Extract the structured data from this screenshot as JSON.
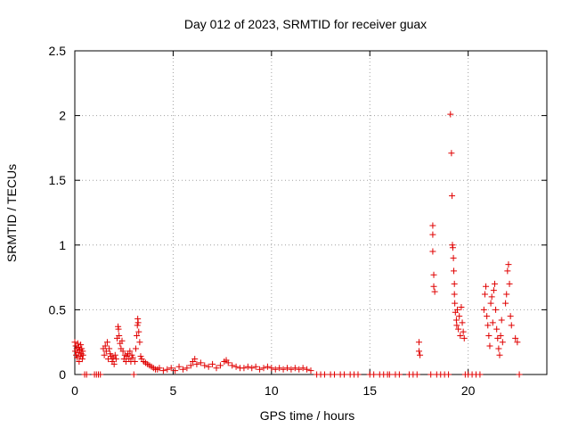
{
  "chart_data": {
    "type": "scatter",
    "title": "Day 012 of 2023, SRMTID for receiver guax",
    "xlabel": "GPS time / hours",
    "ylabel": "SRMTID / TECUs",
    "xlim": [
      0,
      24
    ],
    "ylim": [
      0,
      2.5
    ],
    "xticks": [
      0,
      5,
      10,
      15,
      20
    ],
    "yticks": [
      0,
      0.5,
      1,
      1.5,
      2,
      2.5
    ],
    "xtick_labels": [
      "0",
      "5",
      "10",
      "15",
      "20"
    ],
    "ytick_labels": [
      "0",
      "0.5",
      "1",
      "1.5",
      "2",
      "2.5"
    ],
    "grid": true,
    "marker": "+",
    "series": [
      {
        "name": "SRMTID",
        "color": "#e00000",
        "points": [
          [
            0.0,
            0.25
          ],
          [
            0.02,
            0.18
          ],
          [
            0.05,
            0.22
          ],
          [
            0.07,
            0.15
          ],
          [
            0.1,
            0.2
          ],
          [
            0.12,
            0.13
          ],
          [
            0.15,
            0.24
          ],
          [
            0.18,
            0.17
          ],
          [
            0.2,
            0.21
          ],
          [
            0.22,
            0.1
          ],
          [
            0.25,
            0.19
          ],
          [
            0.28,
            0.14
          ],
          [
            0.3,
            0.23
          ],
          [
            0.33,
            0.16
          ],
          [
            0.35,
            0.2
          ],
          [
            0.38,
            0.12
          ],
          [
            0.4,
            0.18
          ],
          [
            0.42,
            0.15
          ],
          [
            0.5,
            0.0
          ],
          [
            0.6,
            0.0
          ],
          [
            1.0,
            0.0
          ],
          [
            1.1,
            0.0
          ],
          [
            1.2,
            0.0
          ],
          [
            1.3,
            0.0
          ],
          [
            1.45,
            0.2
          ],
          [
            1.5,
            0.15
          ],
          [
            1.55,
            0.22
          ],
          [
            1.6,
            0.18
          ],
          [
            1.65,
            0.25
          ],
          [
            1.7,
            0.12
          ],
          [
            1.75,
            0.2
          ],
          [
            1.8,
            0.16
          ],
          [
            1.85,
            0.14
          ],
          [
            1.9,
            0.1
          ],
          [
            1.95,
            0.13
          ],
          [
            2.0,
            0.08
          ],
          [
            2.05,
            0.15
          ],
          [
            2.1,
            0.12
          ],
          [
            2.15,
            0.28
          ],
          [
            2.2,
            0.37
          ],
          [
            2.22,
            0.35
          ],
          [
            2.25,
            0.3
          ],
          [
            2.3,
            0.24
          ],
          [
            2.35,
            0.2
          ],
          [
            2.4,
            0.26
          ],
          [
            2.45,
            0.18
          ],
          [
            2.5,
            0.12
          ],
          [
            2.55,
            0.15
          ],
          [
            2.6,
            0.1
          ],
          [
            2.65,
            0.14
          ],
          [
            2.7,
            0.16
          ],
          [
            2.75,
            0.12
          ],
          [
            2.8,
            0.18
          ],
          [
            2.85,
            0.1
          ],
          [
            2.9,
            0.15
          ],
          [
            2.95,
            0.13
          ],
          [
            3.0,
            0.0
          ],
          [
            3.05,
            0.1
          ],
          [
            3.1,
            0.2
          ],
          [
            3.15,
            0.3
          ],
          [
            3.18,
            0.38
          ],
          [
            3.2,
            0.43
          ],
          [
            3.22,
            0.4
          ],
          [
            3.25,
            0.33
          ],
          [
            3.3,
            0.25
          ],
          [
            3.35,
            0.14
          ],
          [
            3.4,
            0.12
          ],
          [
            3.5,
            0.1
          ],
          [
            3.6,
            0.09
          ],
          [
            3.7,
            0.08
          ],
          [
            3.8,
            0.07
          ],
          [
            3.9,
            0.06
          ],
          [
            4.0,
            0.05
          ],
          [
            4.1,
            0.04
          ],
          [
            4.2,
            0.04
          ],
          [
            4.3,
            0.05
          ],
          [
            4.5,
            0.03
          ],
          [
            4.7,
            0.04
          ],
          [
            4.9,
            0.05
          ],
          [
            5.1,
            0.03
          ],
          [
            5.3,
            0.06
          ],
          [
            5.5,
            0.04
          ],
          [
            5.7,
            0.05
          ],
          [
            5.9,
            0.07
          ],
          [
            6.0,
            0.1
          ],
          [
            6.1,
            0.12
          ],
          [
            6.2,
            0.08
          ],
          [
            6.4,
            0.09
          ],
          [
            6.6,
            0.07
          ],
          [
            6.8,
            0.06
          ],
          [
            7.0,
            0.08
          ],
          [
            7.2,
            0.05
          ],
          [
            7.4,
            0.07
          ],
          [
            7.6,
            0.1
          ],
          [
            7.7,
            0.11
          ],
          [
            7.8,
            0.09
          ],
          [
            8.0,
            0.07
          ],
          [
            8.2,
            0.06
          ],
          [
            8.4,
            0.05
          ],
          [
            8.6,
            0.05
          ],
          [
            8.8,
            0.06
          ],
          [
            9.0,
            0.05
          ],
          [
            9.2,
            0.06
          ],
          [
            9.4,
            0.04
          ],
          [
            9.6,
            0.05
          ],
          [
            9.8,
            0.06
          ],
          [
            10.0,
            0.05
          ],
          [
            10.2,
            0.04
          ],
          [
            10.4,
            0.05
          ],
          [
            10.6,
            0.04
          ],
          [
            10.8,
            0.05
          ],
          [
            11.0,
            0.04
          ],
          [
            11.2,
            0.05
          ],
          [
            11.4,
            0.04
          ],
          [
            11.6,
            0.05
          ],
          [
            11.8,
            0.04
          ],
          [
            12.0,
            0.03
          ],
          [
            12.3,
            0.0
          ],
          [
            12.5,
            0.0
          ],
          [
            12.7,
            0.0
          ],
          [
            13.0,
            0.0
          ],
          [
            13.2,
            0.0
          ],
          [
            13.5,
            0.0
          ],
          [
            13.7,
            0.0
          ],
          [
            14.0,
            0.0
          ],
          [
            14.2,
            0.0
          ],
          [
            14.4,
            0.0
          ],
          [
            15.0,
            0.0
          ],
          [
            15.2,
            0.0
          ],
          [
            15.5,
            0.0
          ],
          [
            15.7,
            0.0
          ],
          [
            15.9,
            0.0
          ],
          [
            16.0,
            0.0
          ],
          [
            16.3,
            0.0
          ],
          [
            16.5,
            0.0
          ],
          [
            17.0,
            0.0
          ],
          [
            17.2,
            0.0
          ],
          [
            17.4,
            0.0
          ],
          [
            17.5,
            0.25
          ],
          [
            17.5,
            0.18
          ],
          [
            17.55,
            0.15
          ],
          [
            18.1,
            0.0
          ],
          [
            18.2,
            1.15
          ],
          [
            18.2,
            1.08
          ],
          [
            18.2,
            0.95
          ],
          [
            18.25,
            0.77
          ],
          [
            18.25,
            0.68
          ],
          [
            18.3,
            0.64
          ],
          [
            18.4,
            0.0
          ],
          [
            18.6,
            0.0
          ],
          [
            18.8,
            0.0
          ],
          [
            19.0,
            0.0
          ],
          [
            19.1,
            2.01
          ],
          [
            19.15,
            1.71
          ],
          [
            19.18,
            1.38
          ],
          [
            19.2,
            1.0
          ],
          [
            19.22,
            0.98
          ],
          [
            19.25,
            0.9
          ],
          [
            19.27,
            0.8
          ],
          [
            19.3,
            0.7
          ],
          [
            19.3,
            0.62
          ],
          [
            19.32,
            0.55
          ],
          [
            19.35,
            0.48
          ],
          [
            19.4,
            0.42
          ],
          [
            19.42,
            0.38
          ],
          [
            19.45,
            0.5
          ],
          [
            19.5,
            0.35
          ],
          [
            19.55,
            0.45
          ],
          [
            19.6,
            0.3
          ],
          [
            19.65,
            0.52
          ],
          [
            19.7,
            0.4
          ],
          [
            19.75,
            0.33
          ],
          [
            19.8,
            0.28
          ],
          [
            19.85,
            0.0
          ],
          [
            20.0,
            0.0
          ],
          [
            20.2,
            0.0
          ],
          [
            20.4,
            0.0
          ],
          [
            20.6,
            0.0
          ],
          [
            20.8,
            0.5
          ],
          [
            20.85,
            0.62
          ],
          [
            20.9,
            0.68
          ],
          [
            20.95,
            0.45
          ],
          [
            21.0,
            0.38
          ],
          [
            21.05,
            0.3
          ],
          [
            21.1,
            0.22
          ],
          [
            21.15,
            0.55
          ],
          [
            21.2,
            0.6
          ],
          [
            21.25,
            0.4
          ],
          [
            21.3,
            0.65
          ],
          [
            21.35,
            0.7
          ],
          [
            21.4,
            0.5
          ],
          [
            21.45,
            0.35
          ],
          [
            21.5,
            0.28
          ],
          [
            21.55,
            0.2
          ],
          [
            21.6,
            0.15
          ],
          [
            21.65,
            0.3
          ],
          [
            21.7,
            0.42
          ],
          [
            21.75,
            0.25
          ],
          [
            21.9,
            0.55
          ],
          [
            21.95,
            0.62
          ],
          [
            22.0,
            0.8
          ],
          [
            22.05,
            0.85
          ],
          [
            22.1,
            0.7
          ],
          [
            22.15,
            0.45
          ],
          [
            22.2,
            0.38
          ],
          [
            22.4,
            0.28
          ],
          [
            22.5,
            0.25
          ],
          [
            22.6,
            0.0
          ]
        ]
      }
    ]
  }
}
